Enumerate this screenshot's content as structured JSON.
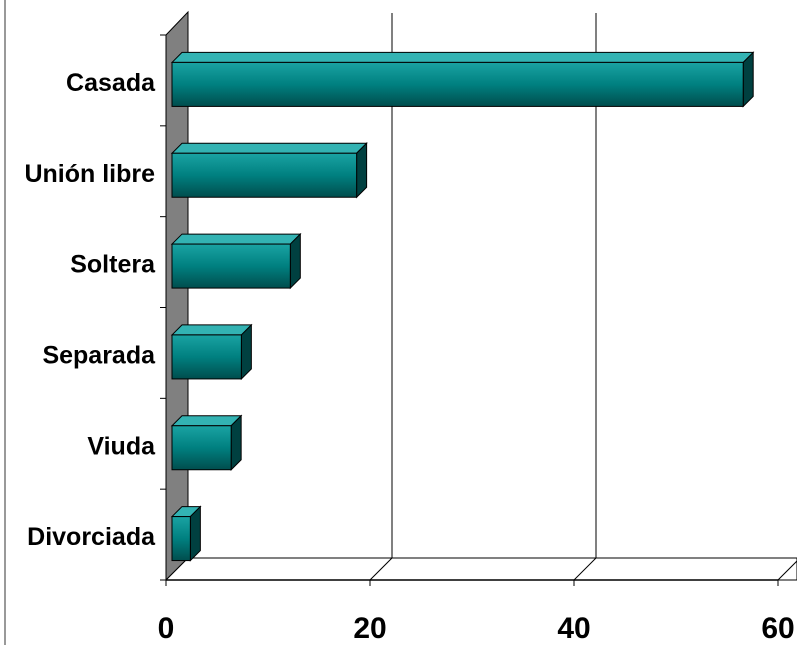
{
  "chart_data": {
    "type": "bar",
    "orientation": "horizontal",
    "categories": [
      "Casada",
      "Unión libre",
      "Soltera",
      "Separada",
      "Viuda",
      "Divorciada"
    ],
    "values": [
      56,
      18.1,
      11.6,
      6.8,
      5.8,
      1.8
    ],
    "color": "#008080",
    "xlim": [
      0,
      60
    ],
    "xticks": [
      0,
      20,
      40,
      60
    ],
    "grid": true
  }
}
